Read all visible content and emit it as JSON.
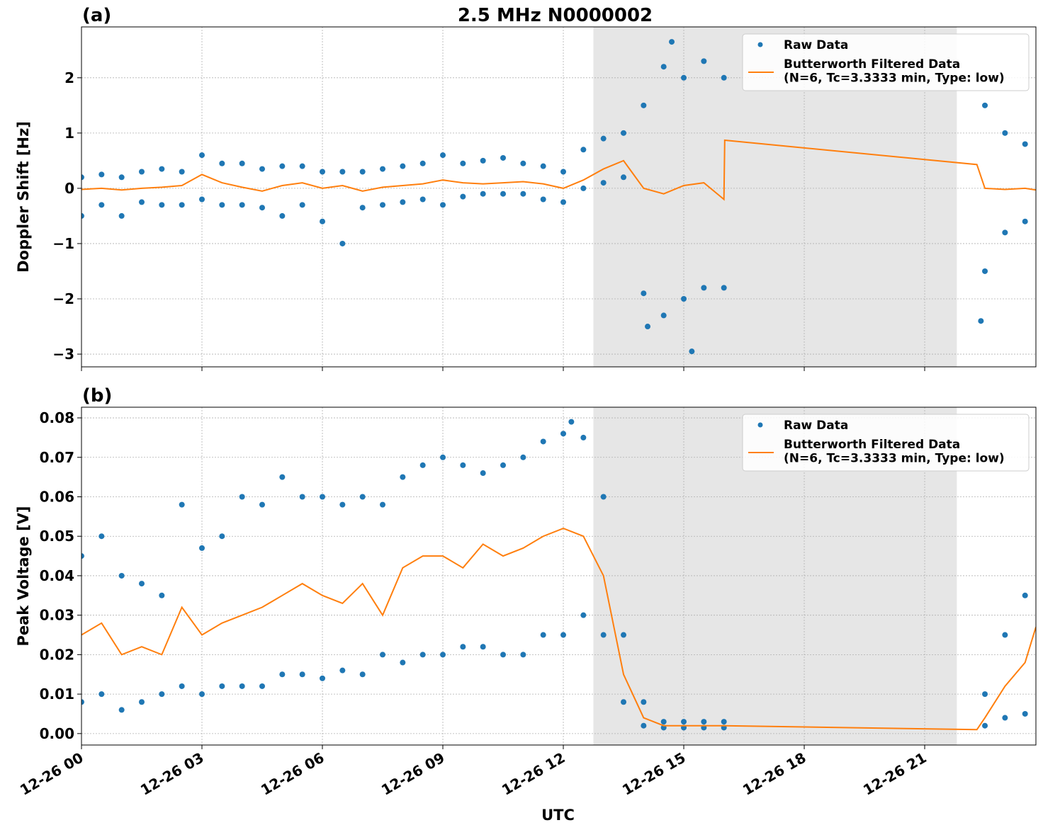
{
  "chart_data": [
    {
      "type": "scatter-line",
      "title": "2.5 MHz N0000002",
      "panel_label": "(a)",
      "y_label": "Doppler Shift [Hz]",
      "xlim": [
        0,
        23.77
      ],
      "ylim": [
        -3.23,
        2.92
      ],
      "xticks": [
        {
          "value": 0,
          "label": "12-26 00"
        },
        {
          "value": 3,
          "label": "12-26 03"
        },
        {
          "value": 6,
          "label": "12-26 06"
        },
        {
          "value": 9,
          "label": "12-26 09"
        },
        {
          "value": 12,
          "label": "12-26 12"
        },
        {
          "value": 15,
          "label": "12-26 15"
        },
        {
          "value": 18,
          "label": "12-26 18"
        },
        {
          "value": 21,
          "label": "12-26 21"
        }
      ],
      "yticks": [
        {
          "value": -3,
          "label": "−3"
        },
        {
          "value": -2,
          "label": "−2"
        },
        {
          "value": -1,
          "label": "−1"
        },
        0,
        1,
        2
      ],
      "grid": true,
      "legend": "upper right",
      "shaded_span": [
        12.75,
        21.8
      ],
      "shade_color": "#e6e6e6",
      "series": [
        {
          "name": "Raw Data",
          "kind": "points",
          "color": "#1f77b4",
          "x": [
            0,
            0,
            0.5,
            0.5,
            1,
            1,
            1.5,
            1.5,
            2,
            2,
            2.5,
            2.5,
            3,
            3,
            3.5,
            3.5,
            4,
            4,
            4.5,
            4.5,
            5,
            5,
            5.5,
            5.5,
            6,
            6,
            6.5,
            6.5,
            7,
            7,
            7.5,
            7.5,
            8,
            8,
            8.5,
            8.5,
            9,
            9,
            9.5,
            9.5,
            10,
            10,
            10.5,
            10.5,
            11,
            11,
            11.5,
            11.5,
            12,
            12,
            12.5,
            12.5,
            13,
            13,
            13.5,
            13.5,
            14,
            14,
            14.5,
            14.5,
            15,
            15,
            15.5,
            15.5,
            16,
            16,
            22.5,
            22.5,
            23,
            23,
            23.5,
            23.5,
            14.7,
            15.2,
            22.4,
            14.1
          ],
          "values": [
            0.2,
            -0.5,
            0.25,
            -0.3,
            0.2,
            -0.5,
            0.3,
            -0.25,
            0.35,
            -0.3,
            0.3,
            -0.3,
            0.6,
            -0.2,
            0.45,
            -0.3,
            0.45,
            -0.3,
            0.35,
            -0.35,
            0.4,
            -0.5,
            0.4,
            -0.3,
            0.3,
            -0.6,
            0.3,
            -1.0,
            0.3,
            -0.35,
            0.35,
            -0.3,
            0.4,
            -0.25,
            0.45,
            -0.2,
            0.6,
            -0.3,
            0.45,
            -0.15,
            0.5,
            -0.1,
            0.55,
            -0.1,
            0.45,
            -0.1,
            0.4,
            -0.2,
            0.3,
            -0.25,
            0.7,
            0.0,
            0.9,
            0.1,
            1.0,
            0.2,
            1.5,
            -1.9,
            2.2,
            -2.3,
            2.0,
            -2.0,
            2.3,
            -1.8,
            2.0,
            -1.8,
            1.5,
            -1.5,
            1.0,
            -0.8,
            0.8,
            -0.6,
            2.65,
            -2.95,
            -2.4,
            -2.5
          ]
        },
        {
          "name": "Butterworth Filtered Data\n(N=6, Tc=3.3333 min, Type: low)",
          "kind": "line",
          "color": "#ff7f0e",
          "x": [
            0,
            0.5,
            1,
            1.5,
            2,
            2.5,
            3,
            3.5,
            4,
            4.5,
            5,
            5.5,
            6,
            6.5,
            7,
            7.5,
            8,
            8.5,
            9,
            9.5,
            10,
            10.5,
            11,
            11.5,
            12,
            12.5,
            13,
            13.5,
            14,
            14.5,
            15,
            15.5,
            16,
            16.02,
            22.3,
            22.5,
            23,
            23.5,
            23.77
          ],
          "values": [
            -0.02,
            0,
            -0.03,
            0,
            0.02,
            0.05,
            0.25,
            0.1,
            0.02,
            -0.05,
            0.05,
            0.1,
            0.0,
            0.05,
            -0.05,
            0.02,
            0.05,
            0.08,
            0.15,
            0.1,
            0.08,
            0.1,
            0.12,
            0.08,
            0.0,
            0.15,
            0.35,
            0.5,
            0.0,
            -0.1,
            0.05,
            0.1,
            -0.2,
            0.87,
            0.43,
            0.0,
            -0.02,
            0.0,
            -0.03
          ]
        }
      ]
    },
    {
      "type": "scatter-line",
      "panel_label": "(b)",
      "y_label": "Peak Voltage [V]",
      "x_label": "UTC",
      "xlim": [
        0,
        23.77
      ],
      "ylim": [
        -0.0029,
        0.0827
      ],
      "xticks": [
        {
          "value": 0,
          "label": "12-26 00"
        },
        {
          "value": 3,
          "label": "12-26 03"
        },
        {
          "value": 6,
          "label": "12-26 06"
        },
        {
          "value": 9,
          "label": "12-26 09"
        },
        {
          "value": 12,
          "label": "12-26 12"
        },
        {
          "value": 15,
          "label": "12-26 15"
        },
        {
          "value": 18,
          "label": "12-26 18"
        },
        {
          "value": 21,
          "label": "12-26 21"
        }
      ],
      "yticks": [
        {
          "value": 0,
          "label": "0.00"
        },
        0.01,
        0.02,
        0.03,
        0.04,
        0.05,
        0.06,
        0.07,
        0.08
      ],
      "grid": true,
      "legend": "upper right",
      "shaded_span": [
        12.75,
        21.8
      ],
      "shade_color": "#e6e6e6",
      "series": [
        {
          "name": "Raw Data",
          "kind": "points",
          "color": "#1f77b4",
          "x": [
            0,
            0,
            0.5,
            0.5,
            1,
            1,
            1.5,
            1.5,
            2,
            2,
            2.5,
            2.5,
            3,
            3,
            3.5,
            3.5,
            4,
            4,
            4.5,
            4.5,
            5,
            5,
            5.5,
            5.5,
            6,
            6,
            6.5,
            6.5,
            7,
            7,
            7.5,
            7.5,
            8,
            8,
            8.5,
            8.5,
            9,
            9,
            9.5,
            9.5,
            10,
            10,
            10.5,
            10.5,
            11,
            11,
            11.5,
            11.5,
            12,
            12,
            12.5,
            12.5,
            13,
            13,
            13.5,
            13.5,
            14,
            14,
            14.5,
            14.5,
            15,
            15,
            15.5,
            15.5,
            16,
            16,
            22.5,
            22.5,
            23,
            23,
            23.5,
            23.5,
            12.2
          ],
          "values": [
            0.045,
            0.008,
            0.05,
            0.01,
            0.04,
            0.006,
            0.038,
            0.008,
            0.035,
            0.01,
            0.058,
            0.012,
            0.047,
            0.01,
            0.05,
            0.012,
            0.06,
            0.012,
            0.058,
            0.012,
            0.065,
            0.015,
            0.06,
            0.015,
            0.06,
            0.014,
            0.058,
            0.016,
            0.06,
            0.015,
            0.058,
            0.02,
            0.065,
            0.018,
            0.068,
            0.02,
            0.07,
            0.02,
            0.068,
            0.022,
            0.066,
            0.022,
            0.068,
            0.02,
            0.07,
            0.02,
            0.074,
            0.025,
            0.076,
            0.025,
            0.075,
            0.03,
            0.06,
            0.025,
            0.025,
            0.008,
            0.008,
            0.002,
            0.003,
            0.0015,
            0.003,
            0.0015,
            0.003,
            0.0015,
            0.003,
            0.0015,
            0.01,
            0.002,
            0.025,
            0.004,
            0.035,
            0.005,
            0.079
          ]
        },
        {
          "name": "Butterworth Filtered Data\n(N=6, Tc=3.3333 min, Type: low)",
          "kind": "line",
          "color": "#ff7f0e",
          "x": [
            0,
            0.5,
            1,
            1.5,
            2,
            2.5,
            3,
            3.5,
            4,
            4.5,
            5,
            5.5,
            6,
            6.5,
            7,
            7.5,
            8,
            8.5,
            9,
            9.5,
            10,
            10.5,
            11,
            11.5,
            12,
            12.5,
            13,
            13.5,
            14,
            14.5,
            15,
            15.5,
            16,
            22.3,
            22.5,
            23,
            23.5,
            23.77
          ],
          "values": [
            0.025,
            0.028,
            0.02,
            0.022,
            0.02,
            0.032,
            0.025,
            0.028,
            0.03,
            0.032,
            0.035,
            0.038,
            0.035,
            0.033,
            0.038,
            0.03,
            0.042,
            0.045,
            0.045,
            0.042,
            0.048,
            0.045,
            0.047,
            0.05,
            0.052,
            0.05,
            0.04,
            0.015,
            0.004,
            0.002,
            0.002,
            0.002,
            0.002,
            0.001,
            0.004,
            0.012,
            0.018,
            0.027
          ]
        }
      ]
    }
  ]
}
